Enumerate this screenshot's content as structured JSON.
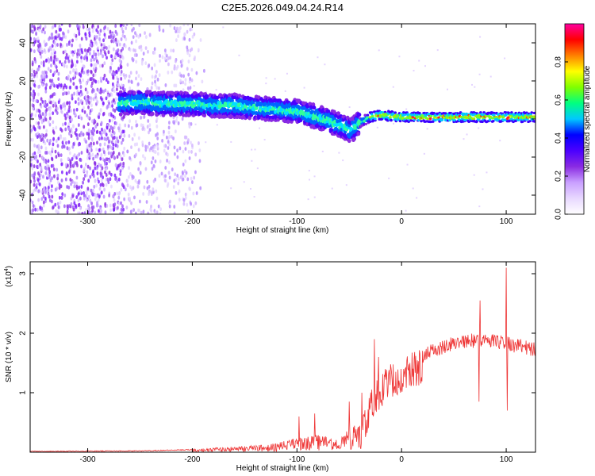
{
  "chart_data": [
    {
      "type": "heatmap",
      "title": "C2E5.2026.049.04.24.R14",
      "xlabel": "Height of straight line (km)",
      "ylabel": "Frequency (Hz)",
      "xlim": [
        -355,
        128
      ],
      "ylim": [
        -50,
        50
      ],
      "x_ticks": [
        -300,
        -200,
        -100,
        0,
        100
      ],
      "y_ticks": [
        -40,
        -20,
        0,
        20,
        40
      ],
      "colorbar": {
        "label": "Normalized spectral amplitude",
        "range": [
          0,
          1
        ],
        "ticks": [
          "0.0",
          "0.2",
          "0.4",
          "0.6",
          "0.8"
        ],
        "tick_values": [
          0.0,
          0.2,
          0.4,
          0.6,
          0.8
        ],
        "colors": [
          "#ffffff",
          "#e8d8ff",
          "#c9a0ff",
          "#8a2be2",
          "#4b00ff",
          "#0000ff",
          "#00c8ff",
          "#00ff80",
          "#80ff00",
          "#ffff00",
          "#ff8000",
          "#ff0000",
          "#ff00a0"
        ]
      },
      "band_center": [
        {
          "x": -270,
          "y": 8
        },
        {
          "x": -250,
          "y": 9
        },
        {
          "x": -230,
          "y": 8
        },
        {
          "x": -200,
          "y": 8
        },
        {
          "x": -180,
          "y": 7
        },
        {
          "x": -160,
          "y": 7
        },
        {
          "x": -140,
          "y": 6
        },
        {
          "x": -120,
          "y": 5
        },
        {
          "x": -100,
          "y": 4
        },
        {
          "x": -80,
          "y": 1
        },
        {
          "x": -60,
          "y": -3
        },
        {
          "x": -48,
          "y": -6
        },
        {
          "x": -40,
          "y": -2
        },
        {
          "x": -30,
          "y": 1
        },
        {
          "x": -20,
          "y": 2
        },
        {
          "x": 0,
          "y": 1
        },
        {
          "x": 50,
          "y": 1
        },
        {
          "x": 100,
          "y": 1
        },
        {
          "x": 128,
          "y": 1
        }
      ]
    },
    {
      "type": "line",
      "title": "",
      "xlabel": "Height of straight line (km)",
      "ylabel": "SNR (10 * v/v)",
      "scale_label": "(x10",
      "scale_exponent": "4",
      "xlim": [
        -355,
        128
      ],
      "ylim": [
        0,
        3.2
      ],
      "x_ticks": [
        -300,
        -200,
        -100,
        0,
        100
      ],
      "y_ticks": [
        1,
        2,
        3
      ],
      "series": [
        {
          "name": "SNR",
          "color": "#ee3333",
          "envelope": [
            {
              "x": -355,
              "y": 0.02
            },
            {
              "x": -250,
              "y": 0.03
            },
            {
              "x": -200,
              "y": 0.05
            },
            {
              "x": -180,
              "y": 0.08
            },
            {
              "x": -150,
              "y": 0.1
            },
            {
              "x": -120,
              "y": 0.15
            },
            {
              "x": -100,
              "y": 0.25
            },
            {
              "x": -80,
              "y": 0.3
            },
            {
              "x": -60,
              "y": 0.25
            },
            {
              "x": -50,
              "y": 0.4
            },
            {
              "x": -40,
              "y": 0.55
            },
            {
              "x": -30,
              "y": 1.0
            },
            {
              "x": -20,
              "y": 1.35
            },
            {
              "x": -10,
              "y": 1.5
            },
            {
              "x": 0,
              "y": 1.6
            },
            {
              "x": 20,
              "y": 1.75
            },
            {
              "x": 40,
              "y": 1.9
            },
            {
              "x": 60,
              "y": 2.0
            },
            {
              "x": 80,
              "y": 2.0
            },
            {
              "x": 100,
              "y": 1.95
            },
            {
              "x": 110,
              "y": 1.92
            },
            {
              "x": 128,
              "y": 1.85
            }
          ],
          "spikes": [
            {
              "x": -98,
              "y": 0.6
            },
            {
              "x": -83,
              "y": 0.65
            },
            {
              "x": -50,
              "y": 0.85
            },
            {
              "x": -38,
              "y": 1.0
            },
            {
              "x": -26,
              "y": 1.9
            },
            {
              "x": -22,
              "y": 1.6
            },
            {
              "x": 75,
              "y": 2.55
            },
            {
              "x": 100,
              "y": 3.1
            },
            {
              "x": 101,
              "y": 0.7
            },
            {
              "x": 74,
              "y": 0.85
            }
          ]
        }
      ]
    }
  ]
}
